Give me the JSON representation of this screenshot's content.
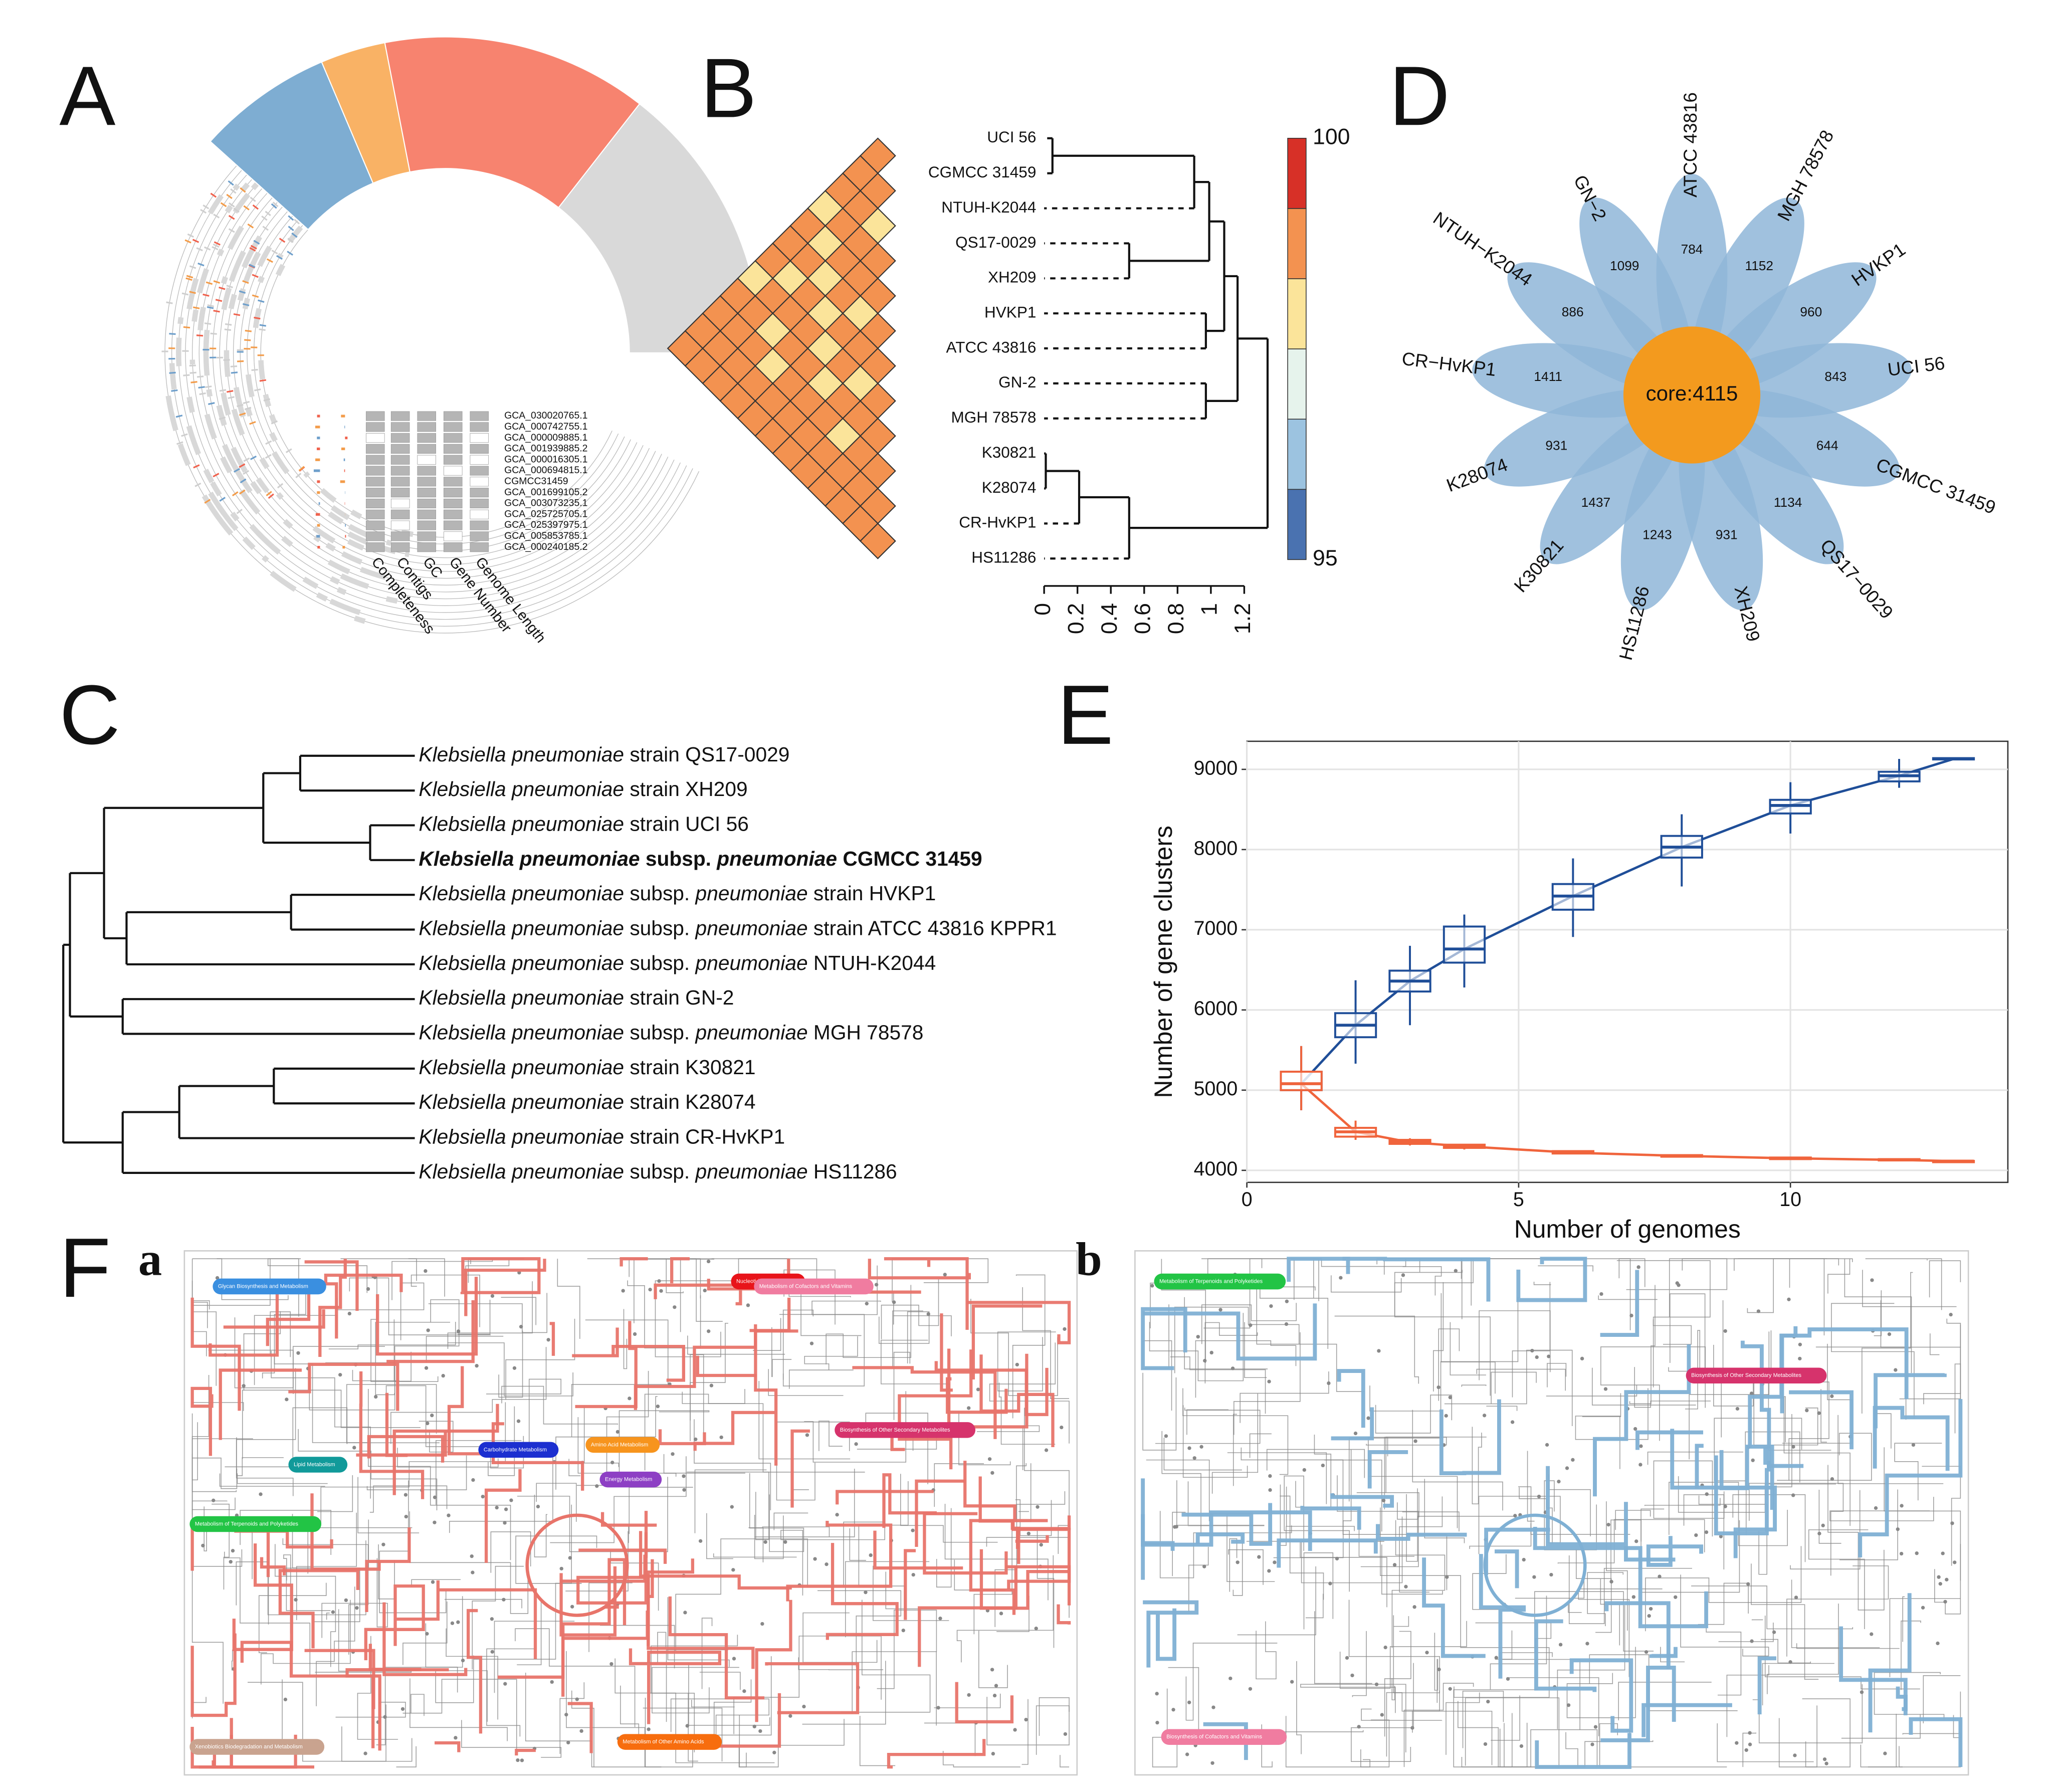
{
  "panels": [
    "A",
    "B",
    "C",
    "D",
    "E",
    "F"
  ],
  "chart_data": [
    {
      "type": "circos",
      "genomes": [
        "GCA_030020765.1",
        "GCA_000742755.1",
        "GCA_000009885.1",
        "GCA_001939885.2",
        "GCA_000016305.1",
        "GCA_000694815.1",
        "CGMCC31459",
        "GCA_001699105.2",
        "GCA_003073235.1",
        "GCA_025725705.1",
        "GCA_025397975.1",
        "GCA_005853785.1",
        "GCA_000240185.2"
      ],
      "tracks": [
        "Completeness",
        "Contigs",
        "GC",
        "Gene Number",
        "Genome Length"
      ]
    },
    {
      "type": "heatmap-dendrogram",
      "labels": [
        "UCI 56",
        "CGMCC 31459",
        "NTUH-K2044",
        "QS17-0029",
        "XH209",
        "HVKP1",
        "ATCC 43816",
        "GN-2",
        "MGH 78578",
        "K30821",
        "K28074",
        "CR-HvKP1",
        "HS11286"
      ],
      "matrix": [
        [
          98.9
        ],
        [
          98.7,
          98.8
        ],
        [
          98.6,
          98.7,
          97.9
        ],
        [
          97.9,
          98.6,
          98.7,
          98.9
        ],
        [
          98.7,
          97.9,
          98.6,
          98.7,
          98.6
        ],
        [
          98.8,
          98.7,
          97.9,
          98.6,
          97.9,
          98.7
        ],
        [
          98.6,
          97.9,
          98.7,
          97.9,
          98.6,
          98.7,
          98.8
        ],
        [
          97.9,
          98.6,
          98.7,
          98.6,
          97.8,
          98.6,
          97.9,
          98.7
        ],
        [
          98.7,
          98.6,
          97.9,
          98.7,
          98.6,
          97.9,
          98.7,
          98.6,
          98.8
        ],
        [
          98.6,
          98.7,
          98.6,
          97.9,
          98.7,
          98.6,
          98.7,
          97.8,
          98.6,
          99.0
        ],
        [
          98.7,
          98.6,
          98.7,
          98.6,
          98.7,
          98.7,
          98.6,
          98.7,
          98.6,
          98.8,
          98.9
        ],
        [
          98.6,
          98.7,
          98.6,
          98.7,
          98.6,
          98.7,
          98.7,
          98.6,
          98.7,
          98.6,
          98.8,
          98.7
        ]
      ],
      "colorbar": {
        "lim": [
          95,
          100
        ],
        "ticks": [
          95,
          100
        ],
        "colors": [
          "#4a72b0",
          "#9cc3e0",
          "#e6f3ec",
          "#fbe49a",
          "#f39250",
          "#d73027"
        ]
      },
      "merges": [
        [
          -1,
          -2,
          0.05
        ],
        [
          1,
          -3,
          0.9
        ],
        [
          -4,
          -5,
          0.51
        ],
        [
          2,
          3,
          0.99
        ],
        [
          -6,
          -7,
          0.97
        ],
        [
          4,
          5,
          1.08
        ],
        [
          -8,
          -9,
          0.97
        ],
        [
          6,
          7,
          1.16
        ],
        [
          -10,
          -11,
          0.01
        ],
        [
          9,
          -12,
          0.21
        ],
        [
          10,
          -13,
          0.51
        ],
        [
          8,
          11,
          1.34
        ]
      ],
      "xlim": [
        0,
        1.2
      ],
      "xticks": [
        0,
        0.2,
        0.4,
        0.6,
        0.8,
        1,
        1.2
      ]
    },
    {
      "type": "tree",
      "leaves": [
        [
          {
            "text": "Klebsiella pneumoniae",
            "style": "italic"
          },
          {
            "text": " strain QS17-0029"
          }
        ],
        [
          {
            "text": "Klebsiella pneumoniae",
            "style": "italic"
          },
          {
            "text": " strain XH209"
          }
        ],
        [
          {
            "text": "Klebsiella pneumoniae",
            "style": "italic"
          },
          {
            "text": " strain UCI 56"
          }
        ],
        [
          {
            "text": "Klebsiella pneumoniae",
            "style": "bold-italic"
          },
          {
            "text": " subsp. ",
            "style": "bold"
          },
          {
            "text": "pneumoniae",
            "style": "bold-italic"
          },
          {
            "text": " CGMCC 31459",
            "style": "bold"
          }
        ],
        [
          {
            "text": "Klebsiella pneumoniae",
            "style": "italic"
          },
          {
            "text": " subsp. "
          },
          {
            "text": "pneumoniae",
            "style": "italic"
          },
          {
            "text": " strain HVKP1"
          }
        ],
        [
          {
            "text": "Klebsiella pneumoniae",
            "style": "italic"
          },
          {
            "text": " subsp. "
          },
          {
            "text": "pneumoniae",
            "style": "italic"
          },
          {
            "text": " strain ATCC 43816 KPPR1"
          }
        ],
        [
          {
            "text": "Klebsiella pneumoniae",
            "style": "italic"
          },
          {
            "text": " subsp. "
          },
          {
            "text": "pneumoniae",
            "style": "italic"
          },
          {
            "text": " NTUH-K2044"
          }
        ],
        [
          {
            "text": "Klebsiella pneumoniae",
            "style": "italic"
          },
          {
            "text": " strain GN-2"
          }
        ],
        [
          {
            "text": "Klebsiella pneumoniae",
            "style": "italic"
          },
          {
            "text": " subsp. "
          },
          {
            "text": "pneumoniae",
            "style": "italic"
          },
          {
            "text": " MGH 78578"
          }
        ],
        [
          {
            "text": "Klebsiella pneumoniae",
            "style": "italic"
          },
          {
            "text": " strain K30821"
          }
        ],
        [
          {
            "text": "Klebsiella pneumoniae",
            "style": "italic"
          },
          {
            "text": " strain K28074"
          }
        ],
        [
          {
            "text": "Klebsiella pneumoniae",
            "style": "italic"
          },
          {
            "text": " strain CR-HvKP1"
          }
        ],
        [
          {
            "text": "Klebsiella pneumoniae",
            "style": "italic"
          },
          {
            "text": " subsp. "
          },
          {
            "text": "pneumoniae",
            "style": "italic"
          },
          {
            "text": " HS11286"
          }
        ]
      ],
      "merges": [
        [
          -1,
          -2,
          0.674
        ],
        [
          -3,
          -4,
          0.873
        ],
        [
          1,
          2,
          0.569
        ],
        [
          -5,
          -6,
          0.648
        ],
        [
          4,
          -7,
          0.18
        ],
        [
          3,
          5,
          0.116
        ],
        [
          -8,
          -9,
          0.169
        ],
        [
          6,
          7,
          0.019
        ],
        [
          -10,
          -11,
          0.599
        ],
        [
          9,
          -12,
          0.33
        ],
        [
          10,
          -13,
          0.169
        ],
        [
          8,
          11,
          0
        ]
      ]
    },
    {
      "type": "flower",
      "core": "core:4115",
      "color": "#8fb6d8",
      "core_color": "#f39a1e",
      "labels": [
        "ATCC 43816",
        "MGH 78578",
        "HVKP1",
        "UCI 56",
        "CGMCC 31459",
        "QS17−0029",
        "XH209",
        "HS11286",
        "K30821",
        "K28074",
        "CR−HvKP1",
        "NTUH−K2044",
        "GN−2"
      ],
      "values": [
        784,
        1152,
        960,
        843,
        644,
        1134,
        931,
        1243,
        1437,
        931,
        1411,
        886,
        1099
      ]
    },
    {
      "type": "box",
      "xlabel": "Number of genomes",
      "ylabel": "Number of gene clusters",
      "xlim": [
        0,
        14
      ],
      "xticks": [
        0,
        5,
        10
      ],
      "ylim": [
        3850,
        9350
      ],
      "yticks": [
        4000,
        5000,
        6000,
        7000,
        8000,
        9000
      ],
      "grid": true,
      "x": [
        1,
        2,
        3,
        4,
        6,
        8,
        10,
        12,
        13
      ],
      "series": [
        {
          "color": "#1f4e98",
          "values": [
            [
              4750,
              5000,
              5080,
              5230,
              5550
            ],
            [
              5330,
              5660,
              5810,
              5960,
              6370
            ],
            [
              5810,
              6230,
              6360,
              6490,
              6800
            ],
            [
              6280,
              6590,
              6760,
              7040,
              7190
            ],
            [
              6910,
              7250,
              7420,
              7570,
              7890
            ],
            [
              7540,
              7900,
              8030,
              8170,
              8440
            ],
            [
              8200,
              8450,
              8550,
              8620,
              8840
            ],
            [
              8770,
              8850,
              8920,
              8970,
              9130
            ],
            [
              9120,
              9125,
              9130,
              9140,
              9150
            ]
          ]
        },
        {
          "color": "#f0643c",
          "values": [
            [
              4750,
              5000,
              5080,
              5230,
              5550
            ],
            [
              4380,
              4420,
              4480,
              4530,
              4620
            ],
            [
              4310,
              4330,
              4350,
              4380,
              4400
            ],
            [
              4260,
              4280,
              4300,
              4320,
              4330
            ],
            [
              4200,
              4210,
              4220,
              4240,
              4250
            ],
            [
              4160,
              4170,
              4180,
              4190,
              4200
            ],
            [
              4130,
              4140,
              4150,
              4160,
              4160
            ],
            [
              4120,
              4125,
              4130,
              4140,
              4140
            ],
            [
              4110,
              4112,
              4115,
              4118,
              4120
            ]
          ]
        }
      ]
    },
    {
      "type": "pathway-maps",
      "maps": [
        {
          "label": "a",
          "color": "#e8746a",
          "categories": [
            {
              "name": "Glycan Biosynthesis and Metabolism",
              "color": "#3a8fe0"
            },
            {
              "name": "Nucleotide Metabolism",
              "color": "#e8141a"
            },
            {
              "name": "Metabolism of Cofactors and Vitamins",
              "color": "#f07ca0"
            },
            {
              "name": "Carbohydrate Metabolism",
              "color": "#1c2fd0"
            },
            {
              "name": "Lipid Metabolism",
              "color": "#119a9a"
            },
            {
              "name": "Amino Acid Metabolism",
              "color": "#f7941d"
            },
            {
              "name": "Energy Metabolism",
              "color": "#8d3fc4"
            },
            {
              "name": "Metabolism of Terpenoids and Polyketides",
              "color": "#22c445"
            },
            {
              "name": "Biosynthesis of Other Secondary Metabolites",
              "color": "#d6336c"
            },
            {
              "name": "Xenobiotics Biodegradation and Metabolism",
              "color": "#c9a38f"
            },
            {
              "name": "Metabolism of Other Amino Acids",
              "color": "#f76d0e"
            }
          ]
        },
        {
          "label": "b",
          "color": "#7fb0d4",
          "categories": [
            {
              "name": "Metabolism of Terpenoids and Polyketides",
              "color": "#22c445"
            },
            {
              "name": "Biosynthesis of Other Secondary Metabolites",
              "color": "#d6336c"
            },
            {
              "name": "Biosynthesis of Cofactors and Vitamins",
              "color": "#f07ca0"
            }
          ]
        }
      ]
    }
  ]
}
